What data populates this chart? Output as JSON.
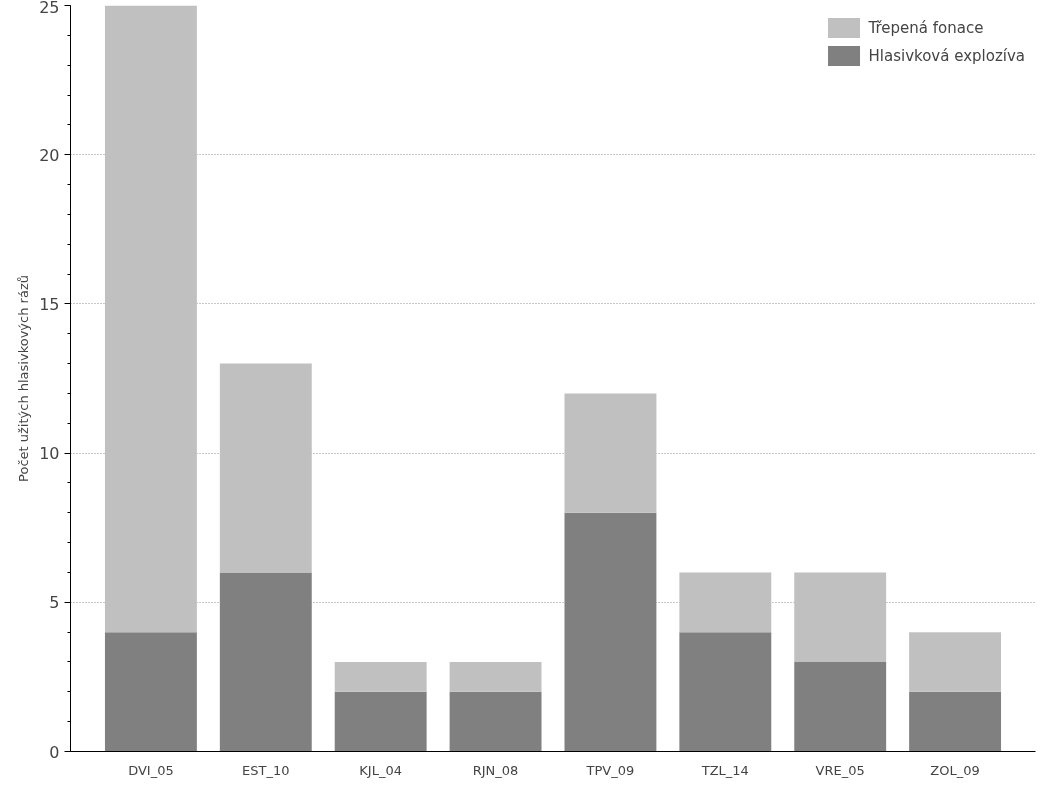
{
  "chart_data": {
    "type": "bar",
    "stacked": true,
    "ylabel": "Počet užitých hlasivkových rázů",
    "categories": [
      "DVI_05",
      "EST_10",
      "KJL_04",
      "RJN_08",
      "TPV_09",
      "TZL_14",
      "VRE_05",
      "ZOL_09"
    ],
    "series": [
      {
        "name": "Hlasivková explozíva",
        "color": "#808080",
        "values": [
          4,
          6,
          2,
          2,
          8,
          4,
          3,
          2
        ]
      },
      {
        "name": "Třepená fonace",
        "color": "#c0c0c0",
        "values": [
          21,
          7,
          1,
          1,
          4,
          2,
          3,
          2
        ]
      }
    ],
    "ylim": [
      0,
      25
    ],
    "yticks": [
      0,
      5,
      10,
      15,
      20,
      25
    ],
    "grid": "y",
    "legend": "top right"
  }
}
